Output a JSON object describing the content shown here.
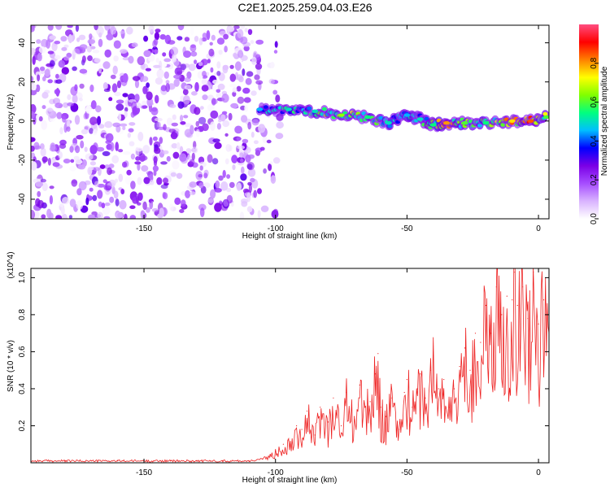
{
  "title": "C2E1.2025.259.04.03.E26",
  "chart_data": [
    {
      "type": "heatmap",
      "xlabel": "Height of straight line (km)",
      "ylabel": "Frequency (Hz)",
      "xlim": [
        -193,
        4
      ],
      "ylim": [
        -50,
        49
      ],
      "xticks": [
        -150,
        -100,
        -50,
        0
      ],
      "yticks": [
        -40,
        -20,
        0,
        20,
        40
      ],
      "colorbar": {
        "label": "Normalized spectral amplitude",
        "range": [
          0,
          1
        ],
        "ticks": [
          "0.0",
          "0.2",
          "0.4",
          "0.6",
          "0.8"
        ],
        "colors": [
          "#ffffff",
          "#d9b3ff",
          "#a64dff",
          "#7a00e6",
          "#0000ff",
          "#00bfff",
          "#00ff80",
          "#80ff00",
          "#ffff00",
          "#ff8000",
          "#ff0000",
          "#ff4d80"
        ]
      },
      "noise_region": {
        "x_range": [
          -193,
          -98
        ],
        "freq_range": [
          -50,
          49
        ],
        "amplitude_range": [
          0.0,
          0.3
        ]
      },
      "signal_track": [
        {
          "x": -106,
          "freq": 6,
          "amp": 0.45
        },
        {
          "x": -95,
          "freq": 6,
          "amp": 0.5
        },
        {
          "x": -85,
          "freq": 5,
          "amp": 0.5
        },
        {
          "x": -75,
          "freq": 3,
          "amp": 0.65
        },
        {
          "x": -65,
          "freq": 2,
          "amp": 0.55
        },
        {
          "x": -57,
          "freq": -1,
          "amp": 0.5
        },
        {
          "x": -50,
          "freq": 3,
          "amp": 0.45
        },
        {
          "x": -45,
          "freq": 1,
          "amp": 0.5
        },
        {
          "x": -40,
          "freq": -2,
          "amp": 0.55
        },
        {
          "x": -35,
          "freq": -1,
          "amp": 0.8
        },
        {
          "x": -28,
          "freq": -1,
          "amp": 0.6
        },
        {
          "x": -20,
          "freq": -1,
          "amp": 0.55
        },
        {
          "x": -10,
          "freq": 0,
          "amp": 0.75
        },
        {
          "x": -3,
          "freq": 0,
          "amp": 0.85
        },
        {
          "x": 3,
          "freq": 2,
          "amp": 0.6
        }
      ]
    },
    {
      "type": "line",
      "xlabel": "Height of straight line (km)",
      "ylabel": "SNR (10 * v/v)",
      "y_multiplier": "(x10^4)",
      "xlim": [
        -193,
        4
      ],
      "ylim": [
        0,
        1.05
      ],
      "xticks": [
        -150,
        -100,
        -50,
        0
      ],
      "yticks": [
        0.2,
        0.4,
        0.6,
        0.8,
        1.0
      ],
      "series": [
        {
          "name": "SNR",
          "color": "#ee2222",
          "x": [
            -193,
            -180,
            -170,
            -160,
            -150,
            -140,
            -130,
            -120,
            -110,
            -105,
            -100,
            -97,
            -95,
            -92,
            -90,
            -88,
            -85,
            -83,
            -80,
            -78,
            -75,
            -73,
            -70,
            -68,
            -66,
            -64,
            -62,
            -61,
            -60,
            -58,
            -56,
            -55,
            -53,
            -51,
            -50,
            -48,
            -46,
            -45,
            -43,
            -41,
            -40,
            -38,
            -36,
            -34,
            -32,
            -30,
            -28,
            -26,
            -24,
            -22,
            -20,
            -18,
            -16,
            -14,
            -12,
            -10,
            -9,
            -8,
            -6,
            -4,
            -2,
            0,
            2,
            4
          ],
          "values": [
            0.01,
            0.01,
            0.01,
            0.01,
            0.01,
            0.01,
            0.01,
            0.01,
            0.01,
            0.02,
            0.06,
            0.1,
            0.12,
            0.2,
            0.18,
            0.28,
            0.15,
            0.3,
            0.22,
            0.35,
            0.2,
            0.38,
            0.25,
            0.42,
            0.3,
            0.33,
            0.48,
            0.59,
            0.3,
            0.25,
            0.35,
            0.32,
            0.18,
            0.38,
            0.45,
            0.3,
            0.4,
            0.48,
            0.35,
            0.5,
            0.58,
            0.4,
            0.45,
            0.3,
            0.4,
            0.52,
            0.62,
            0.5,
            0.7,
            0.65,
            0.85,
            0.7,
            0.95,
            0.8,
            0.9,
            0.88,
            1.03,
            0.85,
            0.95,
            0.78,
            1.03,
            0.75,
            0.88,
            0.7
          ]
        }
      ]
    }
  ]
}
